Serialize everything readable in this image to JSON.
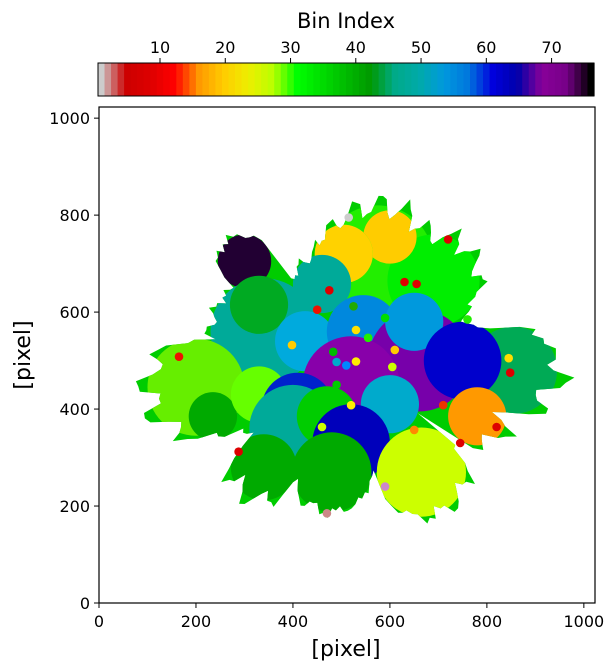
{
  "chart_data": {
    "type": "scatter",
    "title": "",
    "xlabel": "[pixel]",
    "ylabel": "[pixel]",
    "xlim": [
      0,
      1023
    ],
    "ylim": [
      0,
      1023
    ],
    "xticks": [
      0,
      200,
      400,
      600,
      800,
      1000
    ],
    "yticks": [
      0,
      200,
      400,
      600,
      800,
      1000
    ],
    "grid": false,
    "colorbar": {
      "label": "Bin Index",
      "range": [
        1,
        76
      ],
      "ticks": [
        10,
        20,
        30,
        40,
        50,
        60,
        70
      ],
      "placement": "top",
      "colormap": "nipy_spectral_r"
    },
    "region_color": "#00cc00",
    "bins": [
      {
        "x": 575,
        "y": 705,
        "r": 115,
        "color": "#22ee00"
      },
      {
        "x": 690,
        "y": 665,
        "r": 95,
        "color": "#00ee00"
      },
      {
        "x": 600,
        "y": 755,
        "r": 55,
        "color": "#ffcc00"
      },
      {
        "x": 505,
        "y": 720,
        "r": 60,
        "color": "#33ff00"
      },
      {
        "x": 505,
        "y": 720,
        "r": 60,
        "color": "#ffd200"
      },
      {
        "x": 460,
        "y": 658,
        "r": 60,
        "color": "#00aa99"
      },
      {
        "x": 300,
        "y": 705,
        "r": 55,
        "color": "#220033"
      },
      {
        "x": 340,
        "y": 560,
        "r": 110,
        "color": "#00aa99"
      },
      {
        "x": 330,
        "y": 615,
        "r": 60,
        "color": "#00aa22"
      },
      {
        "x": 425,
        "y": 540,
        "r": 62,
        "color": "#00aadd"
      },
      {
        "x": 545,
        "y": 560,
        "r": 75,
        "color": "#0088dd"
      },
      {
        "x": 660,
        "y": 500,
        "r": 105,
        "color": "#7700aa"
      },
      {
        "x": 520,
        "y": 450,
        "r": 100,
        "color": "#8800aa"
      },
      {
        "x": 650,
        "y": 580,
        "r": 60,
        "color": "#0099dd"
      },
      {
        "x": 855,
        "y": 480,
        "r": 90,
        "color": "#00aa55"
      },
      {
        "x": 750,
        "y": 500,
        "r": 80,
        "color": "#0000cc"
      },
      {
        "x": 200,
        "y": 445,
        "r": 100,
        "color": "#66ee00"
      },
      {
        "x": 235,
        "y": 385,
        "r": 50,
        "color": "#00aa00"
      },
      {
        "x": 330,
        "y": 430,
        "r": 58,
        "color": "#66ff00"
      },
      {
        "x": 410,
        "y": 400,
        "r": 75,
        "color": "#0022cc"
      },
      {
        "x": 400,
        "y": 360,
        "r": 90,
        "color": "#00aa99"
      },
      {
        "x": 470,
        "y": 385,
        "r": 62,
        "color": "#00cc00"
      },
      {
        "x": 600,
        "y": 410,
        "r": 60,
        "color": "#00aacc"
      },
      {
        "x": 520,
        "y": 330,
        "r": 80,
        "color": "#0000bb"
      },
      {
        "x": 780,
        "y": 385,
        "r": 60,
        "color": "#ff9900"
      },
      {
        "x": 340,
        "y": 280,
        "r": 68,
        "color": "#00aa00"
      },
      {
        "x": 480,
        "y": 270,
        "r": 82,
        "color": "#00aa00"
      },
      {
        "x": 665,
        "y": 270,
        "r": 92,
        "color": "#ccff00"
      }
    ],
    "points": [
      {
        "x": 165,
        "y": 508,
        "color": "#ee1100"
      },
      {
        "x": 288,
        "y": 312,
        "color": "#dd0000"
      },
      {
        "x": 398,
        "y": 532,
        "color": "#ffcc00"
      },
      {
        "x": 450,
        "y": 605,
        "color": "#ee1100"
      },
      {
        "x": 475,
        "y": 645,
        "color": "#dd0000"
      },
      {
        "x": 515,
        "y": 795,
        "color": "#cccccc"
      },
      {
        "x": 525,
        "y": 612,
        "color": "#22aa00"
      },
      {
        "x": 530,
        "y": 563,
        "color": "#ffe000"
      },
      {
        "x": 555,
        "y": 547,
        "color": "#22ee00"
      },
      {
        "x": 483,
        "y": 518,
        "color": "#00bb00"
      },
      {
        "x": 490,
        "y": 497,
        "color": "#00aacc"
      },
      {
        "x": 510,
        "y": 490,
        "color": "#0088ff"
      },
      {
        "x": 530,
        "y": 498,
        "color": "#ffee00"
      },
      {
        "x": 490,
        "y": 450,
        "color": "#00cc00"
      },
      {
        "x": 520,
        "y": 408,
        "color": "#ffee00"
      },
      {
        "x": 460,
        "y": 363,
        "color": "#ccff00"
      },
      {
        "x": 470,
        "y": 185,
        "color": "#cc8888"
      },
      {
        "x": 590,
        "y": 588,
        "color": "#00dd00"
      },
      {
        "x": 610,
        "y": 522,
        "color": "#ffcc00"
      },
      {
        "x": 605,
        "y": 487,
        "color": "#ccff00"
      },
      {
        "x": 630,
        "y": 662,
        "color": "#dd0000"
      },
      {
        "x": 655,
        "y": 658,
        "color": "#dd0000"
      },
      {
        "x": 720,
        "y": 750,
        "color": "#dd0000"
      },
      {
        "x": 760,
        "y": 585,
        "color": "#22ee00"
      },
      {
        "x": 845,
        "y": 505,
        "color": "#ffdd00"
      },
      {
        "x": 848,
        "y": 475,
        "color": "#dd0000"
      },
      {
        "x": 710,
        "y": 408,
        "color": "#ee3300"
      },
      {
        "x": 650,
        "y": 357,
        "color": "#ff8800"
      },
      {
        "x": 745,
        "y": 330,
        "color": "#dd0000"
      },
      {
        "x": 820,
        "y": 363,
        "color": "#dd0000"
      },
      {
        "x": 590,
        "y": 240,
        "color": "#cc88cc"
      }
    ]
  }
}
